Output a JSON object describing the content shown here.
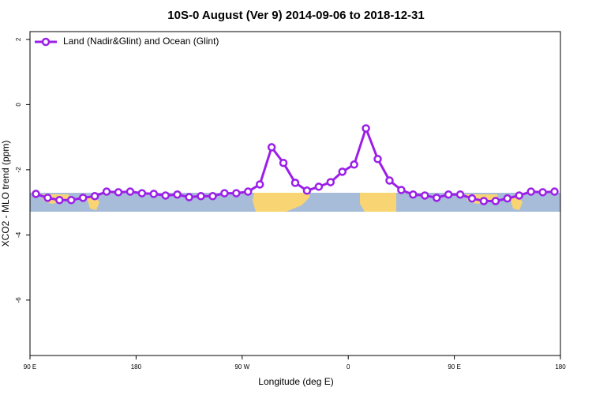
{
  "chart_data": {
    "type": "line",
    "title": "10S-0 August (Ver 9)   2014-09-06 to 2018-12-31",
    "x_label": "Longitude (deg E)",
    "y_label": "XCO2 - MLO trend (ppm)",
    "xlim": [
      90,
      540
    ],
    "xticks": [
      {
        "value": 90,
        "label": "90 E"
      },
      180,
      {
        "value": 270,
        "label": "90 W"
      },
      {
        "value": 360,
        "label": "0"
      },
      {
        "value": 450,
        "label": "90 E"
      },
      {
        "value": 540,
        "label": "180"
      }
    ],
    "ylim": [
      -7.7,
      2.24
    ],
    "yticks": [
      2,
      0,
      -2,
      -4,
      -6
    ],
    "legend": "top-left",
    "x": [
      95,
      105,
      115,
      125,
      135,
      145,
      155,
      165,
      175,
      185,
      195,
      205,
      215,
      225,
      235,
      245,
      255,
      265,
      275,
      285,
      295,
      305,
      315,
      325,
      335,
      345,
      355,
      365,
      375,
      385,
      395,
      405,
      415,
      425,
      435,
      445,
      455,
      465,
      475,
      485,
      495,
      505,
      515,
      525,
      535
    ],
    "series": [
      {
        "name": "Land (Nadir&Glint) and Ocean (Glint)",
        "color": "#9b1fe8",
        "values": [
          -2.74,
          -2.86,
          -2.93,
          -2.93,
          -2.86,
          -2.81,
          -2.67,
          -2.69,
          -2.67,
          -2.72,
          -2.74,
          -2.79,
          -2.76,
          -2.84,
          -2.81,
          -2.81,
          -2.72,
          -2.72,
          -2.67,
          -2.45,
          -1.31,
          -1.79,
          -2.4,
          -2.64,
          -2.52,
          -2.38,
          -2.06,
          -1.84,
          -0.73,
          -1.67,
          -2.33,
          -2.62,
          -2.76,
          -2.79,
          -2.86,
          -2.76,
          -2.76,
          -2.88,
          -2.96,
          -2.96,
          -2.88,
          -2.79,
          -2.67,
          -2.69,
          -2.67
        ]
      }
    ]
  }
}
